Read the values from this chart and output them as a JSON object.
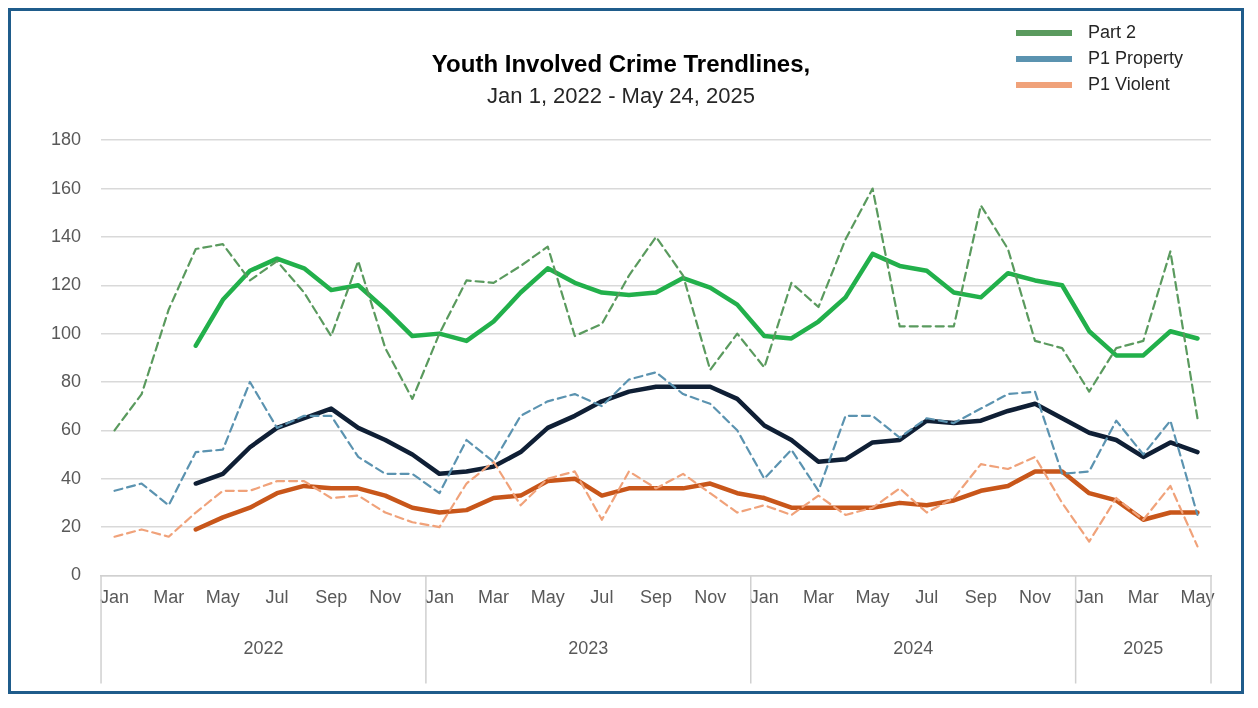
{
  "chart_data": {
    "type": "line",
    "title": "Youth Involved Crime Trendlines,",
    "subtitle": "Jan 1, 2022 - May 24, 2025",
    "categories": [
      "Jan",
      null,
      "Mar",
      null,
      "May",
      null,
      "Jul",
      null,
      "Sep",
      null,
      "Nov",
      null,
      "Jan",
      null,
      "Mar",
      null,
      "May",
      null,
      "Jul",
      null,
      "Sep",
      null,
      "Nov",
      null,
      "Jan",
      null,
      "Mar",
      null,
      "May",
      null,
      "Jul",
      null,
      "Sep",
      null,
      "Nov",
      null,
      "Jan",
      null,
      "Mar",
      null,
      "May"
    ],
    "annotations": [
      "2022",
      "2023",
      "2024",
      "2025"
    ],
    "series": [
      {
        "name": "Part 2",
        "color": "#5a9a5e",
        "line_style": "dashed",
        "values": [
          60,
          75,
          110,
          135,
          137,
          122,
          130,
          117,
          99,
          130,
          94,
          73,
          100,
          122,
          121,
          128,
          136,
          99,
          104,
          124,
          140,
          124,
          85,
          100,
          86,
          121,
          111,
          139,
          160,
          103,
          103,
          103,
          153,
          135,
          97,
          94,
          76,
          94,
          97,
          134,
          65
        ]
      },
      {
        "name": "P1 Property",
        "color": "#5b93b0",
        "line_style": "dashed",
        "values": [
          35,
          38,
          29,
          51,
          52,
          80,
          61,
          66,
          66,
          49,
          42,
          42,
          34,
          56,
          47,
          66,
          72,
          75,
          70,
          81,
          84,
          75,
          71,
          60,
          40,
          52,
          35,
          66,
          66,
          57,
          65,
          63,
          69,
          75,
          76,
          42,
          43,
          64,
          50,
          64,
          25
        ]
      },
      {
        "name": "P1 Violent",
        "color": "#f0a27a",
        "line_style": "dashed",
        "values": [
          16,
          19,
          16,
          26,
          35,
          35,
          39,
          39,
          32,
          33,
          26,
          22,
          20,
          38,
          47,
          29,
          40,
          43,
          23,
          43,
          36,
          42,
          34,
          26,
          29,
          25,
          33,
          25,
          28,
          36,
          26,
          32,
          46,
          44,
          49,
          30,
          14,
          32,
          23,
          37,
          12
        ]
      },
      {
        "color": "#22b04b",
        "line_style": "solid",
        "values": [
          null,
          null,
          null,
          95,
          114,
          126,
          131,
          127,
          118,
          120,
          110,
          99,
          100,
          97,
          105,
          117,
          127,
          121,
          117,
          116,
          117,
          123,
          119,
          112,
          99,
          98,
          105,
          115,
          133,
          128,
          126,
          117,
          115,
          125,
          122,
          120,
          101,
          91,
          91,
          101,
          98
        ]
      },
      {
        "color": "#0f1f35",
        "line_style": "solid",
        "values": [
          null,
          null,
          null,
          38,
          42,
          53,
          61,
          65,
          69,
          61,
          56,
          50,
          42,
          43,
          45,
          51,
          61,
          66,
          72,
          76,
          78,
          78,
          78,
          73,
          62,
          56,
          47,
          48,
          55,
          56,
          64,
          63,
          64,
          68,
          71,
          65,
          59,
          56,
          49,
          55,
          51
        ]
      },
      {
        "color": "#c8561a",
        "line_style": "solid",
        "values": [
          null,
          null,
          null,
          19,
          24,
          28,
          34,
          37,
          36,
          36,
          33,
          28,
          26,
          27,
          32,
          33,
          39,
          40,
          33,
          36,
          36,
          36,
          38,
          34,
          32,
          28,
          28,
          28,
          28,
          30,
          29,
          31,
          35,
          37,
          43,
          43,
          34,
          31,
          23,
          26,
          26
        ]
      }
    ],
    "ylim": [
      0,
      180
    ],
    "yticks": [
      0,
      20,
      40,
      60,
      80,
      100,
      120,
      140,
      160,
      180
    ],
    "grid": "y",
    "legend": "top right",
    "marker": "none"
  }
}
